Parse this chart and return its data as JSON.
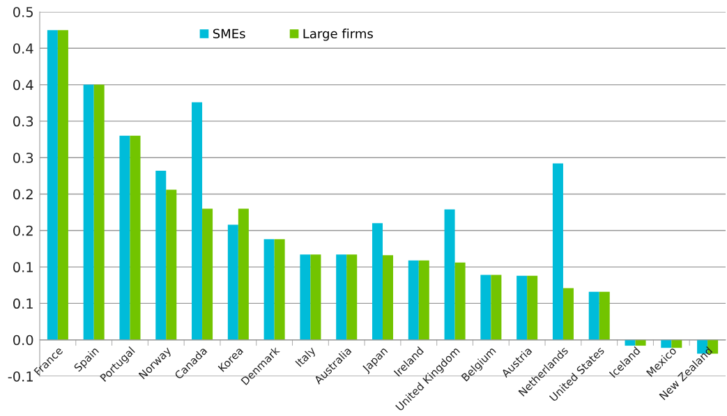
{
  "chart_data": {
    "type": "bar",
    "categories": [
      "France",
      "Spain",
      "Portugal",
      "Norway",
      "Canada",
      "Korea",
      "Denmark",
      "Italy",
      "Australia",
      "Japan",
      "Ireland",
      "United Kingdom",
      "Belgium",
      "Austria",
      "Netherlands",
      "United States",
      "Iceland",
      "Mexico",
      "New Zealand"
    ],
    "series": [
      {
        "name": "SMEs",
        "color": "#00bcd9",
        "values": [
          0.425,
          0.35,
          0.28,
          0.232,
          0.326,
          0.158,
          0.138,
          0.117,
          0.117,
          0.16,
          0.109,
          0.179,
          0.089,
          0.088,
          0.242,
          0.066,
          -0.008,
          -0.011,
          -0.019
        ]
      },
      {
        "name": "Large firms",
        "color": "#72c400",
        "values": [
          0.425,
          0.35,
          0.28,
          0.206,
          0.18,
          0.18,
          0.138,
          0.117,
          0.117,
          0.116,
          0.109,
          0.106,
          0.089,
          0.088,
          0.071,
          0.066,
          -0.008,
          -0.011,
          -0.019
        ]
      }
    ],
    "ylim": [
      -0.05,
      0.45
    ],
    "yticks": [
      {
        "value": -0.05,
        "label": "-0.1"
      },
      {
        "value": 0,
        "label": "0.0"
      },
      {
        "value": 0.05,
        "label": "0.1"
      },
      {
        "value": 0.1,
        "label": "0.1"
      },
      {
        "value": 0.15,
        "label": "0.2"
      },
      {
        "value": 0.2,
        "label": "0.2"
      },
      {
        "value": 0.25,
        "label": "0.3"
      },
      {
        "value": 0.3,
        "label": "0.3"
      },
      {
        "value": 0.35,
        "label": "0.4"
      },
      {
        "value": 0.4,
        "label": "0.4"
      },
      {
        "value": 0.45,
        "label": "0.5"
      }
    ],
    "grid": "y",
    "legend": "top"
  }
}
